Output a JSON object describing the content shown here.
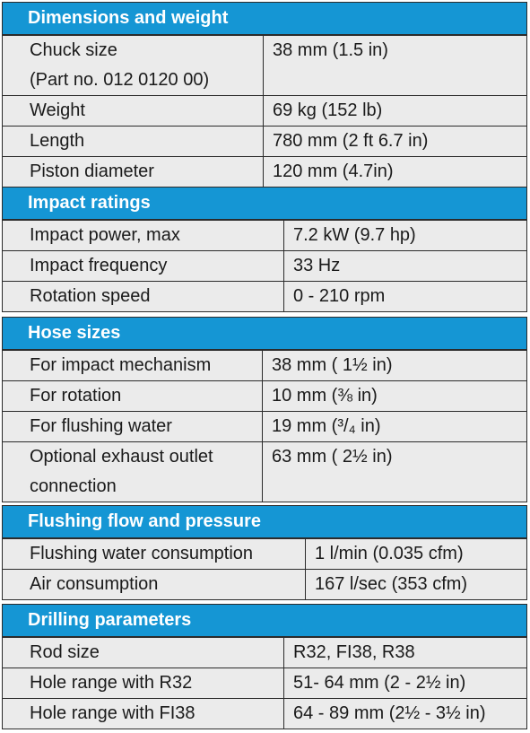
{
  "sections": [
    {
      "title": "Dimensions and weight",
      "rows": [
        {
          "label": [
            "Chuck size",
            "(Part no. 012 0120 00)"
          ],
          "value": "38 mm (1.5 in)"
        },
        {
          "label": [
            "Weight"
          ],
          "value": "69 kg (152 lb)"
        },
        {
          "label": [
            "Length"
          ],
          "value": "780 mm (2 ft 6.7 in)"
        },
        {
          "label": [
            "Piston diameter"
          ],
          "value": "120 mm (4.7in)"
        }
      ]
    },
    {
      "title": "Impact ratings",
      "rows": [
        {
          "label": [
            "Impact power, max"
          ],
          "value": "7.2 kW (9.7 hp)"
        },
        {
          "label": [
            "Impact frequency"
          ],
          "value": "33 Hz"
        },
        {
          "label": [
            "Rotation speed"
          ],
          "value": "0 - 210 rpm"
        }
      ]
    },
    {
      "title": "Hose sizes",
      "rows": [
        {
          "label": [
            "For impact mechanism"
          ],
          "value": "38 mm ( 1½ in)"
        },
        {
          "label": [
            "For rotation"
          ],
          "value": "10 mm (⅜ in)"
        },
        {
          "label": [
            "For flushing water"
          ],
          "value": "19 mm (³/₄ in)"
        },
        {
          "label": [
            "Optional exhaust outlet",
            "connection"
          ],
          "value": "63 mm ( 2½ in)"
        }
      ]
    },
    {
      "title": "Flushing flow and pressure",
      "rows": [
        {
          "label": [
            "Flushing water consumption"
          ],
          "value": "1 l/min (0.035 cfm)"
        },
        {
          "label": [
            "Air consumption"
          ],
          "value": "167 l/sec (353 cfm)"
        }
      ]
    },
    {
      "title": "Drilling parameters",
      "rows": [
        {
          "label": [
            "Rod size"
          ],
          "value": "R32, FI38, R38"
        },
        {
          "label": [
            "Hole range with R32"
          ],
          "value": "51- 64 mm (2 - 2½ in)"
        },
        {
          "label": [
            "Hole range with FI38"
          ],
          "value": "64 - 89 mm (2½ - 3½ in)"
        }
      ]
    }
  ]
}
